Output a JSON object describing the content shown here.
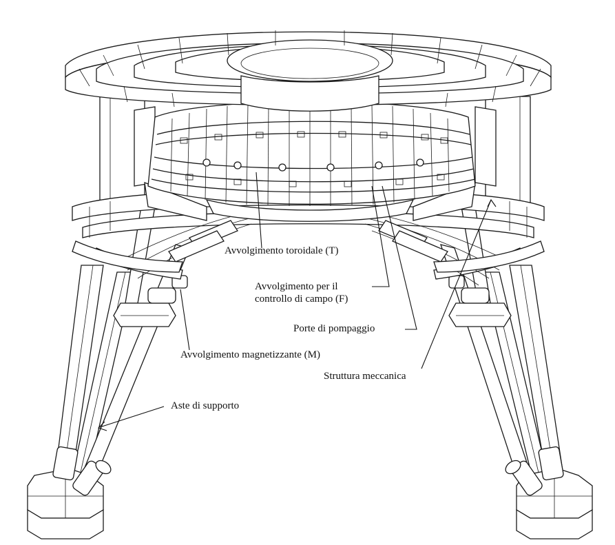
{
  "labels": {
    "toroidal": "Avvolgimento toroidale (T)",
    "field_control_1": "Avvolgimento per il",
    "field_control_2": "controllo di campo (F)",
    "pumping_ports": "Porte di pompaggio",
    "magnetizing": "Avvolgimento magnetizzante (M)",
    "mechanical_structure": "Struttura meccanica",
    "support_rods": "Aste di supporto"
  },
  "colors": {
    "ink": "#1a1a1a",
    "paper": "#ffffff"
  }
}
